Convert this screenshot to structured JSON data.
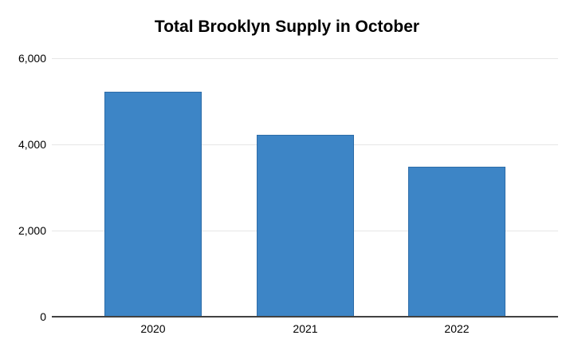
{
  "chart_data": {
    "type": "bar",
    "title": "Total Brooklyn Supply in October",
    "categories": [
      "2020",
      "2021",
      "2022"
    ],
    "values": [
      5230,
      4220,
      3480
    ],
    "xlabel": "",
    "ylabel": "",
    "ylim": [
      0,
      6000
    ],
    "yticks": [
      0,
      2000,
      4000,
      6000
    ],
    "ytick_labels": [
      "0",
      "2,000",
      "4,000",
      "6,000"
    ],
    "grid": true,
    "legend": false,
    "colors": {
      "bar_fill": "#3d85c6",
      "bar_border": "#2d6ca8",
      "gridline": "#e6e6e6",
      "axis_line": "#424242",
      "text": "#000000",
      "background": "#ffffff"
    }
  }
}
